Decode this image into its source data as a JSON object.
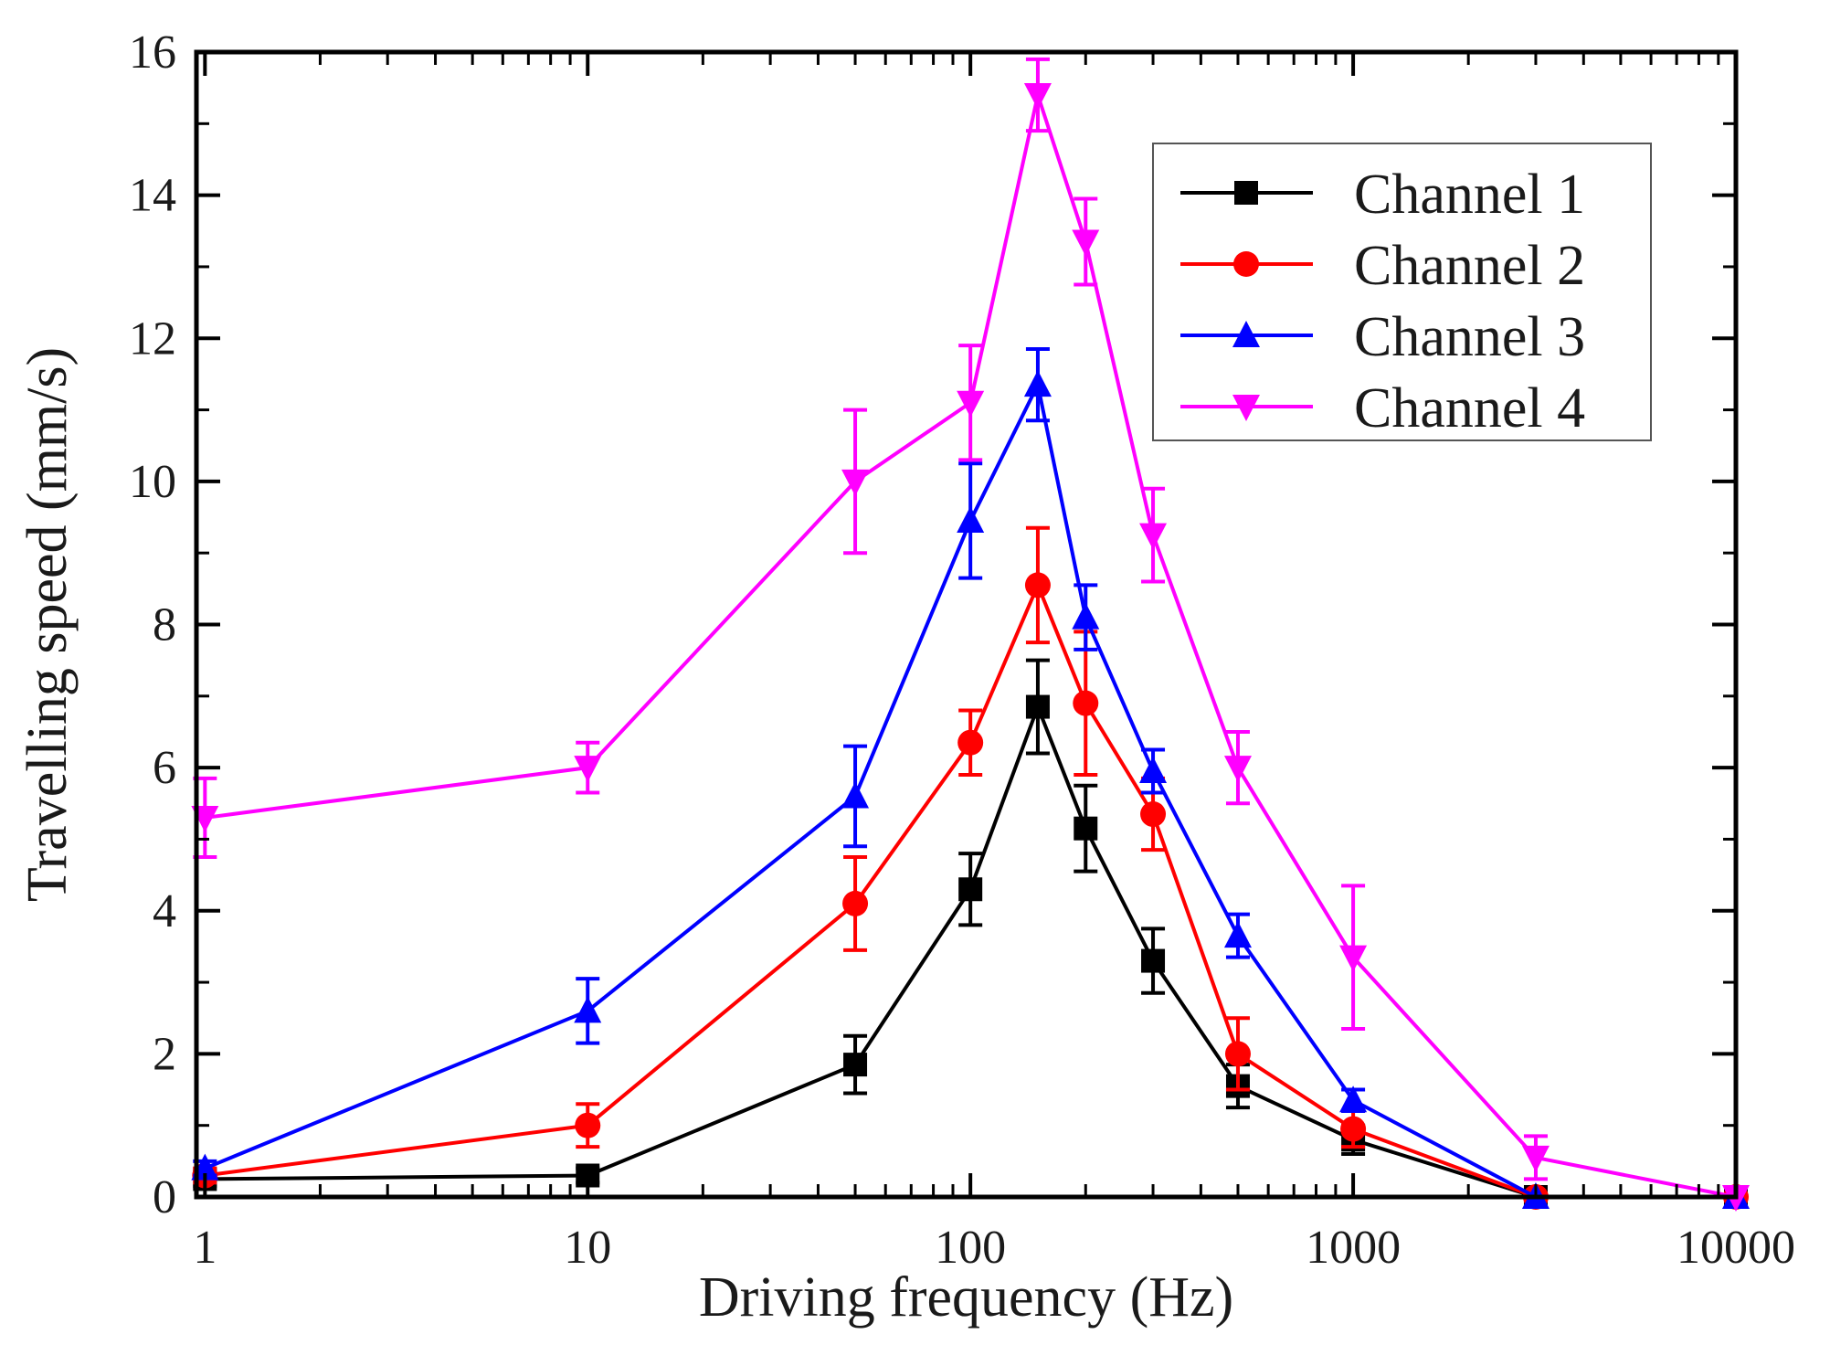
{
  "chart_data": {
    "type": "line",
    "xscale": "log",
    "xlabel": "Driving frequency (Hz)",
    "ylabel": "Travelling speed (mm/s)",
    "xlim": [
      0.95,
      10000
    ],
    "ylim": [
      0,
      16
    ],
    "xticks": [
      1,
      10,
      100,
      1000,
      10000
    ],
    "xtick_labels": [
      "1",
      "10",
      "100",
      "1000",
      "10000"
    ],
    "yticks": [
      0,
      2,
      4,
      6,
      8,
      10,
      12,
      14,
      16
    ],
    "ytick_labels": [
      "0",
      "2",
      "4",
      "6",
      "8",
      "10",
      "12",
      "14",
      "16"
    ],
    "legend_position": "top-right",
    "series": [
      {
        "name": "Channel 1",
        "color": "#000000",
        "marker": "square",
        "x": [
          1,
          10,
          50,
          100,
          150,
          200,
          300,
          500,
          1000,
          3000,
          10000
        ],
        "y": [
          0.25,
          0.3,
          1.85,
          4.3,
          6.85,
          5.15,
          3.3,
          1.55,
          0.8,
          0.0,
          0.0
        ],
        "err": [
          0.1,
          0.1,
          0.4,
          0.5,
          0.65,
          0.6,
          0.45,
          0.3,
          0.2,
          0.05,
          0.05
        ]
      },
      {
        "name": "Channel 2",
        "color": "#ff0000",
        "marker": "circle",
        "x": [
          1,
          10,
          50,
          100,
          150,
          200,
          300,
          500,
          1000,
          3000,
          10000
        ],
        "y": [
          0.3,
          1.0,
          4.1,
          6.35,
          8.55,
          6.9,
          5.35,
          2.0,
          0.95,
          0.0,
          0.0
        ],
        "err": [
          0.1,
          0.3,
          0.65,
          0.45,
          0.8,
          1.0,
          0.5,
          0.5,
          0.25,
          0.05,
          0.05
        ]
      },
      {
        "name": "Channel 3",
        "color": "#0000ff",
        "marker": "triangle-up",
        "x": [
          1,
          10,
          50,
          100,
          150,
          200,
          300,
          500,
          1000,
          3000,
          10000
        ],
        "y": [
          0.4,
          2.6,
          5.6,
          9.45,
          11.35,
          8.1,
          5.95,
          3.65,
          1.35,
          0.0,
          0.0
        ],
        "err": [
          0.1,
          0.45,
          0.7,
          0.8,
          0.5,
          0.45,
          0.3,
          0.3,
          0.15,
          0.05,
          0.05
        ]
      },
      {
        "name": "Channel 4",
        "color": "#ff00ff",
        "marker": "triangle-down",
        "x": [
          1,
          10,
          50,
          100,
          150,
          200,
          300,
          500,
          1000,
          3000,
          10000
        ],
        "y": [
          5.3,
          6.0,
          10.0,
          11.1,
          15.4,
          13.35,
          9.25,
          6.0,
          3.35,
          0.55,
          0.0
        ],
        "err": [
          0.55,
          0.35,
          1.0,
          0.8,
          0.5,
          0.6,
          0.65,
          0.5,
          1.0,
          0.3,
          0.05
        ]
      }
    ]
  }
}
